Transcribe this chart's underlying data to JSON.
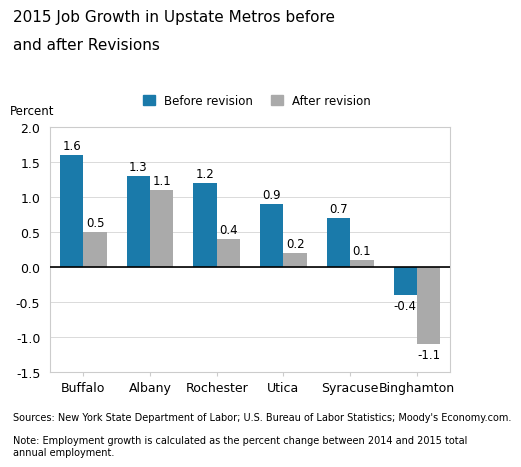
{
  "title_line1": "2015 Job Growth in Upstate Metros before",
  "title_line2": "and after Revisions",
  "categories": [
    "Buffalo",
    "Albany",
    "Rochester",
    "Utica",
    "Syracuse",
    "Binghamton"
  ],
  "before_revision": [
    1.6,
    1.3,
    1.2,
    0.9,
    0.7,
    -0.4
  ],
  "after_revision": [
    0.5,
    1.1,
    0.4,
    0.2,
    0.1,
    -1.1
  ],
  "before_color": "#1a7aaa",
  "after_color": "#aaaaaa",
  "ylabel": "Percent",
  "ylim": [
    -1.5,
    2.0
  ],
  "yticks": [
    -1.5,
    -1.0,
    -0.5,
    0.0,
    0.5,
    1.0,
    1.5,
    2.0
  ],
  "legend_before": "Before revision",
  "legend_after": "After revision",
  "source_text": "Sources: New York State Department of Labor; U.S. Bureau of Labor Statistics; Moody's Economy.com.",
  "note_text": "Note: Employment growth is calculated as the percent change between 2014 and 2015 total\nannual employment.",
  "bar_width": 0.35,
  "title_fontsize": 11,
  "label_fontsize": 8.5,
  "tick_fontsize": 9,
  "annotation_fontsize": 8.5,
  "footer_fontsize": 7
}
